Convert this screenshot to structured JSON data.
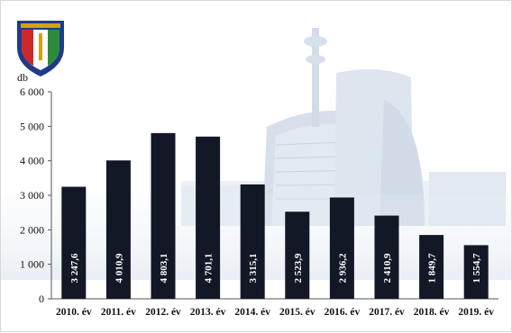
{
  "chart_data": {
    "type": "bar",
    "y_unit_label": "db",
    "categories": [
      "2010. év",
      "2011. év",
      "2012. év",
      "2013. év",
      "2014. év",
      "2015. év",
      "2016. év",
      "2017. év",
      "2018. év",
      "2019. év"
    ],
    "values": [
      3247.6,
      4010.9,
      4803.1,
      4701.1,
      3315.1,
      2523.9,
      2936.2,
      2410.9,
      1849.7,
      1554.7
    ],
    "value_labels": [
      "3 247,6",
      "4 010,9",
      "4 803,1",
      "4 701,1",
      "3 315,1",
      "2 523,9",
      "2 936,2",
      "2 410,9",
      "1 849,7",
      "1 554,7"
    ],
    "yticks": [
      0,
      1000,
      2000,
      3000,
      4000,
      5000,
      6000
    ],
    "ytick_labels": [
      "0",
      "1 000",
      "2 000",
      "3 000",
      "4 000",
      "5 000",
      "6 000"
    ],
    "ylim": [
      0,
      6000
    ],
    "grid": false,
    "legend": "none",
    "bar_color": "#121826",
    "value_label_color": "#ffffff"
  },
  "logo": {
    "icon": "police-shield-emblem-icon"
  },
  "background": {
    "icon": "city-skyline-watermark-icon"
  }
}
